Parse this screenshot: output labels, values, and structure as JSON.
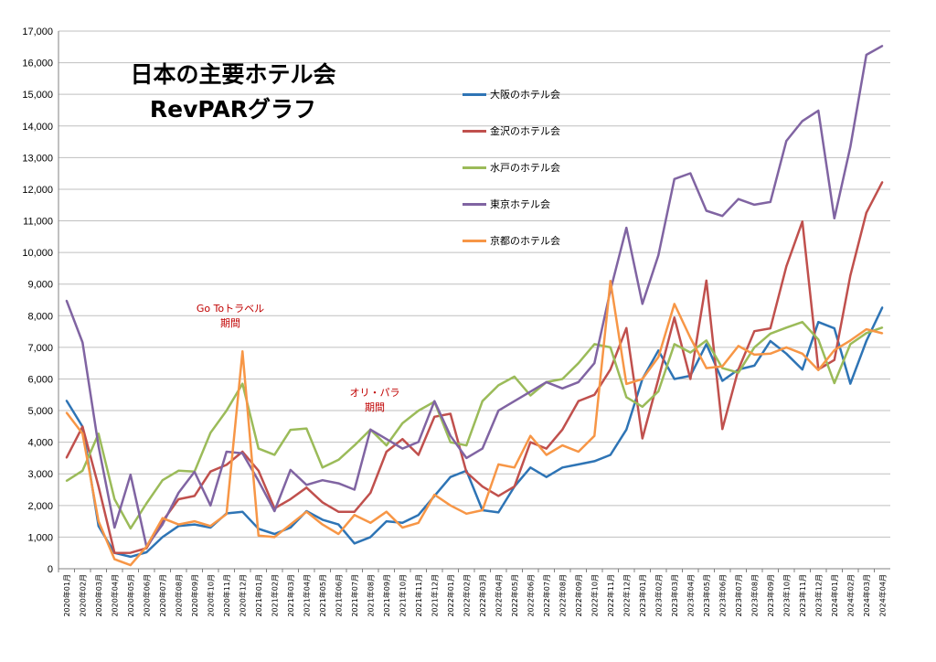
{
  "chart_data": {
    "type": "line",
    "title": "日本の主要ホテル会",
    "subtitle": "RevPARグラフ",
    "ylim": [
      0,
      17000
    ],
    "yticks": [
      "0",
      "1,000",
      "2,000",
      "3,000",
      "4,000",
      "5,000",
      "6,000",
      "7,000",
      "8,000",
      "9,000",
      "10,000",
      "11,000",
      "12,000",
      "13,000",
      "14,000",
      "15,000",
      "16,000",
      "17,000"
    ],
    "grid": true,
    "legend_position": "top-center",
    "x": [
      "2020年01月",
      "2020年02月",
      "2020年03月",
      "2020年04月",
      "2020年05月",
      "2020年06月",
      "2020年07月",
      "2020年08月",
      "2020年09月",
      "2020年10月",
      "2020年11月",
      "2020年12月",
      "2021年01月",
      "2021年02月",
      "2021年03月",
      "2021年04月",
      "2021年05月",
      "2021年06月",
      "2021年07月",
      "2021年08月",
      "2021年09月",
      "2021年10月",
      "2021年11月",
      "2021年12月",
      "2022年01月",
      "2022年02月",
      "2022年03月",
      "2022年04月",
      "2022年05月",
      "2022年06月",
      "2022年07月",
      "2022年08月",
      "2022年09月",
      "2022年10月",
      "2022年11月",
      "2022年12月",
      "2023年01月",
      "2023年02月",
      "2023年03月",
      "2023年04月",
      "2023年05月",
      "2023年06月",
      "2023年07月",
      "2023年08月",
      "2023年09月",
      "2023年10月",
      "2023年11月",
      "2023年12月",
      "2024年01月",
      "2024年02月",
      "2024年03月",
      "2024年04月"
    ],
    "series": [
      {
        "name": "大阪のホテル会",
        "color": "#2e74b5",
        "values": [
          5316,
          4493,
          1350,
          500,
          380,
          520,
          1000,
          1350,
          1400,
          1300,
          1750,
          1800,
          1262,
          1100,
          1300,
          1820,
          1550,
          1400,
          800,
          1000,
          1500,
          1450,
          1700,
          2300,
          2900,
          3100,
          1850,
          1780,
          2600,
          3200,
          2900,
          3200,
          3300,
          3400,
          3600,
          4400,
          6000,
          6900,
          6000,
          6100,
          7100,
          5941,
          6300,
          6420,
          7200,
          6800,
          6300,
          7800,
          7600,
          5852,
          7200,
          8264
        ]
      },
      {
        "name": "金沢のホテル会",
        "color": "#c0504d",
        "values": [
          3509,
          4493,
          2600,
          500,
          502,
          650,
          1500,
          2197,
          2300,
          3074,
          3283,
          3700,
          3100,
          1908,
          2200,
          2564,
          2100,
          1800,
          1800,
          2400,
          3700,
          4100,
          3600,
          4806,
          4900,
          3051,
          2600,
          2300,
          2600,
          4000,
          3800,
          4400,
          5300,
          5500,
          6300,
          7609,
          4119,
          6000,
          7942,
          6000,
          9109,
          4419,
          6300,
          7511,
          7600,
          9561,
          10979,
          6303,
          6600,
          9273,
          11256,
          12226
        ]
      },
      {
        "name": "水戸のホテル会",
        "color": "#9bbb59",
        "values": [
          2779,
          3100,
          4270,
          2200,
          1275,
          2066,
          2800,
          3100,
          3070,
          4300,
          5000,
          5848,
          3800,
          3603,
          4392,
          4434,
          3200,
          3442,
          3900,
          4400,
          3900,
          4600,
          5000,
          5281,
          4000,
          3900,
          5300,
          5800,
          6075,
          5480,
          5900,
          6000,
          6500,
          7100,
          7000,
          5423,
          5123,
          5608,
          7100,
          6837,
          7215,
          6343,
          6200,
          7000,
          7434,
          7624,
          7800,
          7248,
          5869,
          7100,
          7451,
          7626
        ]
      },
      {
        "name": "東京ホテル会",
        "color": "#8064a2",
        "values": [
          8480,
          7155,
          3874,
          1300,
          2972,
          700,
          1400,
          2400,
          3064,
          2000,
          3700,
          3651,
          2779,
          1820,
          3126,
          2650,
          2800,
          2700,
          2500,
          4400,
          4100,
          3800,
          4006,
          5300,
          4200,
          3500,
          3800,
          5000,
          5300,
          5600,
          5900,
          5700,
          5900,
          6500,
          8800,
          10781,
          8376,
          9915,
          12322,
          12504,
          11319,
          11153,
          11688,
          11509,
          11596,
          13528,
          14155,
          14484,
          11078,
          13340,
          16248,
          16533
        ]
      },
      {
        "name": "京都のホテル会",
        "color": "#f79646",
        "values": [
          4934,
          4270,
          1500,
          300,
          112,
          700,
          1600,
          1400,
          1500,
          1350,
          1730,
          6873,
          1047,
          1000,
          1400,
          1800,
          1400,
          1100,
          1700,
          1450,
          1800,
          1300,
          1450,
          2342,
          2000,
          1740,
          1850,
          3300,
          3200,
          4200,
          3600,
          3900,
          3700,
          4200,
          9100,
          5842,
          6000,
          6692,
          8374,
          7300,
          6343,
          6400,
          7042,
          6767,
          6800,
          7000,
          6800,
          6283,
          6911,
          7216,
          7572,
          7446
        ]
      }
    ]
  },
  "annotations": {
    "gotravel_line1": "Go Toトラベル",
    "gotravel_line2": "期間",
    "olympics_line1": "オリ・パラ",
    "olympics_line2": "期間"
  }
}
